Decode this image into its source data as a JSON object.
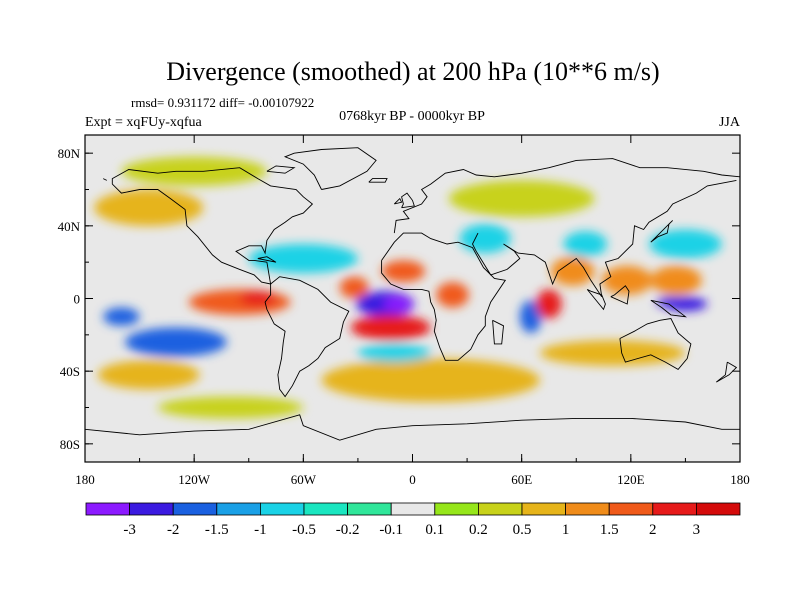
{
  "chart_data": {
    "type": "heatmap",
    "title": "Divergence (smoothed) at 200 hPa (10**6 m/s)",
    "stats_text": "rmsd= 0.931172 diff= -0.00107922",
    "period_text": "0768kyr BP - 0000kyr BP",
    "expt_text": "Expt = xqFUy-xqfua",
    "season_text": "JJA",
    "xlim": [
      -180,
      180
    ],
    "ylim": [
      -90,
      90
    ],
    "xticks": [
      {
        "value": -180,
        "label": "180"
      },
      {
        "value": -120,
        "label": "120W"
      },
      {
        "value": -60,
        "label": "60W"
      },
      {
        "value": 0,
        "label": "0"
      },
      {
        "value": 60,
        "label": "60E"
      },
      {
        "value": 120,
        "label": "120E"
      },
      {
        "value": 180,
        "label": "180"
      }
    ],
    "yticks": [
      {
        "value": 80,
        "label": "80N"
      },
      {
        "value": 40,
        "label": "40N"
      },
      {
        "value": 0,
        "label": "0"
      },
      {
        "value": -40,
        "label": "40S"
      },
      {
        "value": -80,
        "label": "80S"
      }
    ],
    "colorbar": {
      "labels": [
        "-3",
        "-2",
        "-1.5",
        "-1",
        "-0.5",
        "-0.2",
        "-0.1",
        "0.1",
        "0.2",
        "0.5",
        "1",
        "1.5",
        "2",
        "3"
      ],
      "colors": [
        "#8c1aff",
        "#3b1ae0",
        "#1a60e0",
        "#1aa0e6",
        "#1ad2e6",
        "#1ae6c0",
        "#30e69a",
        "#e8e8e8",
        "#96e61a",
        "#c8d21a",
        "#e6b41a",
        "#f08c1a",
        "#f05a1a",
        "#e61a1a",
        "#d40a0a"
      ]
    },
    "anomalies": [
      {
        "lon": -15,
        "lat": -3,
        "rx": 16,
        "ry": 7,
        "value": -3
      },
      {
        "lon": -8,
        "lat": -3,
        "rx": 8,
        "ry": 4,
        "value": -3.5
      },
      {
        "lon": 65,
        "lat": -10,
        "rx": 6,
        "ry": 9,
        "value": -1.6
      },
      {
        "lon": 150,
        "lat": -3,
        "rx": 12,
        "ry": 4,
        "value": -2.6
      },
      {
        "lon": 143,
        "lat": -2,
        "rx": 9,
        "ry": 3,
        "value": -3
      },
      {
        "lon": -130,
        "lat": -24,
        "rx": 28,
        "ry": 8,
        "value": -2
      },
      {
        "lon": -160,
        "lat": -10,
        "rx": 10,
        "ry": 5,
        "value": -2
      },
      {
        "lon": -95,
        "lat": -2,
        "rx": 28,
        "ry": 7,
        "value": 1.7
      },
      {
        "lon": -85,
        "lat": 0,
        "rx": 10,
        "ry": 4,
        "value": 2.3
      },
      {
        "lon": -12,
        "lat": -16,
        "rx": 22,
        "ry": 7,
        "value": 2.1
      },
      {
        "lon": -32,
        "lat": 6,
        "rx": 8,
        "ry": 6,
        "value": 1.8
      },
      {
        "lon": -5,
        "lat": 15,
        "rx": 12,
        "ry": 6,
        "value": 1.7
      },
      {
        "lon": 22,
        "lat": 2,
        "rx": 9,
        "ry": 7,
        "value": 1.5
      },
      {
        "lon": 75,
        "lat": -3,
        "rx": 7,
        "ry": 8,
        "value": 2.5
      },
      {
        "lon": 88,
        "lat": 15,
        "rx": 12,
        "ry": 8,
        "value": 1.2
      },
      {
        "lon": 118,
        "lat": 10,
        "rx": 14,
        "ry": 8,
        "value": 1.2
      },
      {
        "lon": 145,
        "lat": 10,
        "rx": 14,
        "ry": 8,
        "value": 1.2
      },
      {
        "lon": 10,
        "lat": -45,
        "rx": 60,
        "ry": 12,
        "value": 0.9
      },
      {
        "lon": -145,
        "lat": -42,
        "rx": 28,
        "ry": 8,
        "value": 0.7
      },
      {
        "lon": -60,
        "lat": 22,
        "rx": 30,
        "ry": 8,
        "value": -0.9
      },
      {
        "lon": 40,
        "lat": 33,
        "rx": 14,
        "ry": 8,
        "value": -0.8
      },
      {
        "lon": 95,
        "lat": 30,
        "rx": 12,
        "ry": 7,
        "value": -1
      },
      {
        "lon": 150,
        "lat": 30,
        "rx": 20,
        "ry": 8,
        "value": -0.9
      },
      {
        "lon": -145,
        "lat": 50,
        "rx": 30,
        "ry": 10,
        "value": 0.6
      },
      {
        "lon": 60,
        "lat": 55,
        "rx": 40,
        "ry": 10,
        "value": 0.4
      },
      {
        "lon": -120,
        "lat": 70,
        "rx": 40,
        "ry": 8,
        "value": 0.3
      },
      {
        "lon": -10,
        "lat": -30,
        "rx": 20,
        "ry": 5,
        "value": -0.7
      },
      {
        "lon": 110,
        "lat": -30,
        "rx": 40,
        "ry": 7,
        "value": 0.6
      },
      {
        "lon": -100,
        "lat": -60,
        "rx": 40,
        "ry": 6,
        "value": 0.3
      }
    ],
    "coastlines": [
      [
        [
          -165,
          63
        ],
        [
          -160,
          58
        ],
        [
          -150,
          60
        ],
        [
          -140,
          60
        ],
        [
          -133,
          55
        ],
        [
          -125,
          49
        ],
        [
          -124,
          40
        ],
        [
          -118,
          34
        ],
        [
          -110,
          24
        ],
        [
          -105,
          20
        ],
        [
          -95,
          16
        ],
        [
          -87,
          13
        ],
        [
          -83,
          9
        ],
        [
          -78,
          8
        ],
        [
          -80,
          20
        ],
        [
          -87,
          21
        ],
        [
          -90,
          21
        ],
        [
          -97,
          26
        ],
        [
          -90,
          29
        ],
        [
          -83,
          29
        ],
        [
          -81,
          25
        ],
        [
          -80,
          32
        ],
        [
          -76,
          38
        ],
        [
          -70,
          42
        ],
        [
          -66,
          45
        ],
        [
          -60,
          47
        ],
        [
          -55,
          52
        ],
        [
          -60,
          56
        ],
        [
          -64,
          60
        ],
        [
          -78,
          62
        ],
        [
          -85,
          66
        ],
        [
          -95,
          72
        ],
        [
          -115,
          70
        ],
        [
          -130,
          70
        ],
        [
          -140,
          69
        ],
        [
          -156,
          71
        ],
        [
          -165,
          66
        ],
        [
          -165,
          63
        ]
      ],
      [
        [
          -78,
          8
        ],
        [
          -73,
          12
        ],
        [
          -62,
          10
        ],
        [
          -52,
          5
        ],
        [
          -45,
          -2
        ],
        [
          -35,
          -7
        ],
        [
          -38,
          -13
        ],
        [
          -40,
          -22
        ],
        [
          -48,
          -27
        ],
        [
          -52,
          -33
        ],
        [
          -57,
          -37
        ],
        [
          -62,
          -40
        ],
        [
          -66,
          -48
        ],
        [
          -70,
          -54
        ],
        [
          -73,
          -50
        ],
        [
          -74,
          -42
        ],
        [
          -72,
          -33
        ],
        [
          -71,
          -24
        ],
        [
          -70,
          -18
        ],
        [
          -76,
          -14
        ],
        [
          -80,
          -6
        ],
        [
          -81,
          -2
        ],
        [
          -78,
          2
        ],
        [
          -78,
          8
        ]
      ],
      [
        [
          -17,
          21
        ],
        [
          -17,
          14
        ],
        [
          -12,
          8
        ],
        [
          -5,
          5
        ],
        [
          5,
          5
        ],
        [
          9,
          4
        ],
        [
          10,
          -2
        ],
        [
          12,
          -6
        ],
        [
          13,
          -12
        ],
        [
          12,
          -18
        ],
        [
          15,
          -27
        ],
        [
          18,
          -34
        ],
        [
          25,
          -34
        ],
        [
          32,
          -28
        ],
        [
          36,
          -20
        ],
        [
          40,
          -15
        ],
        [
          40,
          -10
        ],
        [
          43,
          -2
        ],
        [
          51,
          10
        ],
        [
          45,
          11
        ],
        [
          39,
          17
        ],
        [
          33,
          28
        ],
        [
          25,
          31
        ],
        [
          19,
          30
        ],
        [
          10,
          33
        ],
        [
          5,
          36
        ],
        [
          -5,
          36
        ],
        [
          -10,
          31
        ],
        [
          -17,
          21
        ]
      ],
      [
        [
          44,
          -12
        ],
        [
          50,
          -15
        ],
        [
          49,
          -25
        ],
        [
          45,
          -25
        ],
        [
          44,
          -12
        ]
      ],
      [
        [
          -10,
          36
        ],
        [
          -9,
          43
        ],
        [
          -2,
          44
        ],
        [
          -5,
          48
        ],
        [
          5,
          52
        ],
        [
          8,
          56
        ],
        [
          5,
          60
        ],
        [
          10,
          63
        ],
        [
          18,
          69
        ],
        [
          28,
          71
        ],
        [
          35,
          68
        ],
        [
          45,
          67
        ],
        [
          60,
          69
        ],
        [
          75,
          72
        ],
        [
          90,
          76
        ],
        [
          110,
          77
        ],
        [
          125,
          72
        ],
        [
          140,
          72
        ],
        [
          160,
          70
        ],
        [
          170,
          68
        ],
        [
          180,
          67
        ]
      ],
      [
        [
          36,
          36
        ],
        [
          33,
          30
        ],
        [
          35,
          26
        ],
        [
          43,
          13
        ],
        [
          52,
          16
        ],
        [
          59,
          22
        ],
        [
          56,
          26
        ],
        [
          50,
          30
        ],
        [
          58,
          25
        ],
        [
          67,
          24
        ],
        [
          73,
          20
        ],
        [
          77,
          8
        ],
        [
          80,
          15
        ],
        [
          90,
          22
        ],
        [
          94,
          17
        ],
        [
          98,
          10
        ],
        [
          104,
          1
        ],
        [
          103,
          8
        ],
        [
          109,
          12
        ],
        [
          106,
          20
        ],
        [
          113,
          22
        ],
        [
          121,
          30
        ],
        [
          122,
          40
        ],
        [
          127,
          38
        ],
        [
          130,
          42
        ],
        [
          140,
          48
        ],
        [
          143,
          52
        ],
        [
          156,
          58
        ],
        [
          162,
          62
        ],
        [
          178,
          65
        ]
      ],
      [
        [
          -170,
          66
        ],
        [
          -168,
          65
        ]
      ],
      [
        [
          96,
          5
        ],
        [
          105,
          -6
        ],
        [
          106,
          -3
        ],
        [
          104,
          2
        ],
        [
          98,
          4
        ],
        [
          96,
          5
        ]
      ],
      [
        [
          109,
          1
        ],
        [
          118,
          -3
        ],
        [
          119,
          4
        ],
        [
          117,
          7
        ],
        [
          111,
          2
        ],
        [
          109,
          1
        ]
      ],
      [
        [
          131,
          -1
        ],
        [
          141,
          -3
        ],
        [
          150,
          -10
        ],
        [
          142,
          -9
        ],
        [
          137,
          -5
        ],
        [
          131,
          -1
        ]
      ],
      [
        [
          114,
          -22
        ],
        [
          122,
          -18
        ],
        [
          129,
          -14
        ],
        [
          136,
          -12
        ],
        [
          142,
          -11
        ],
        [
          146,
          -19
        ],
        [
          153,
          -25
        ],
        [
          151,
          -33
        ],
        [
          146,
          -39
        ],
        [
          139,
          -35
        ],
        [
          131,
          -31
        ],
        [
          117,
          -35
        ],
        [
          115,
          -30
        ],
        [
          114,
          -22
        ]
      ],
      [
        [
          131,
          31
        ],
        [
          135,
          34
        ],
        [
          140,
          36
        ],
        [
          141,
          41
        ],
        [
          143,
          43
        ],
        [
          140,
          40
        ],
        [
          135,
          35
        ],
        [
          131,
          31
        ]
      ],
      [
        [
          173,
          -35
        ],
        [
          178,
          -38
        ],
        [
          174,
          -42
        ],
        [
          167,
          -46
        ],
        [
          172,
          -42
        ],
        [
          173,
          -35
        ]
      ],
      [
        [
          -6,
          50
        ],
        [
          1,
          51
        ],
        [
          0,
          54
        ],
        [
          -3,
          58
        ],
        [
          -6,
          56
        ],
        [
          -5,
          52
        ],
        [
          -6,
          50
        ]
      ],
      [
        [
          -10,
          52
        ],
        [
          -6,
          53
        ],
        [
          -7,
          55
        ],
        [
          -10,
          52
        ]
      ],
      [
        [
          -50,
          60
        ],
        [
          -40,
          62
        ],
        [
          -25,
          70
        ],
        [
          -20,
          76
        ],
        [
          -30,
          83
        ],
        [
          -50,
          82
        ],
        [
          -65,
          80
        ],
        [
          -70,
          78
        ],
        [
          -60,
          74
        ],
        [
          -54,
          68
        ],
        [
          -50,
          60
        ]
      ],
      [
        [
          -24,
          64
        ],
        [
          -15,
          64
        ],
        [
          -14,
          66
        ],
        [
          -22,
          66
        ],
        [
          -24,
          64
        ]
      ],
      [
        [
          -85,
          22
        ],
        [
          -75,
          20
        ],
        [
          -80,
          23
        ],
        [
          -85,
          22
        ]
      ],
      [
        [
          -80,
          70
        ],
        [
          -70,
          69
        ],
        [
          -65,
          72
        ],
        [
          -75,
          73
        ],
        [
          -80,
          70
        ]
      ],
      [
        [
          -180,
          -72
        ],
        [
          -150,
          -75
        ],
        [
          -120,
          -73
        ],
        [
          -90,
          -72
        ],
        [
          -62,
          -64
        ],
        [
          -60,
          -70
        ],
        [
          -40,
          -78
        ],
        [
          -20,
          -72
        ],
        [
          0,
          -70
        ],
        [
          30,
          -69
        ],
        [
          60,
          -67
        ],
        [
          90,
          -66
        ],
        [
          120,
          -66
        ],
        [
          150,
          -68
        ],
        [
          170,
          -72
        ],
        [
          180,
          -72
        ]
      ]
    ]
  }
}
